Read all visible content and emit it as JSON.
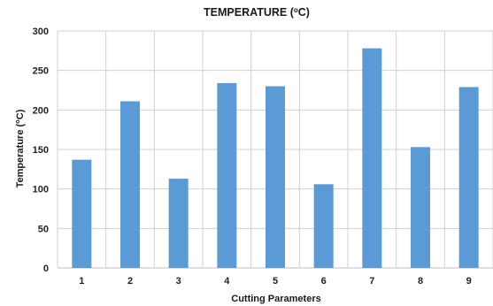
{
  "chart_data": {
    "type": "bar",
    "title_main": "TEMPERATURE (",
    "title_sup": "o",
    "title_end": "C)",
    "xlabel": "Cutting Parameters",
    "ylabel_main": "Temperature (",
    "ylabel_sup": "o",
    "ylabel_end": "C)",
    "categories": [
      "1",
      "2",
      "3",
      "4",
      "5",
      "6",
      "7",
      "8",
      "9"
    ],
    "values": [
      137,
      211,
      113,
      234,
      230,
      106,
      278,
      153,
      229
    ],
    "ylim": [
      0,
      300
    ],
    "yticks": [
      0,
      50,
      100,
      150,
      200,
      250,
      300
    ],
    "grid": true,
    "colors": {
      "bar": "#5b9bd5",
      "grid": "#d0d0d0"
    }
  }
}
